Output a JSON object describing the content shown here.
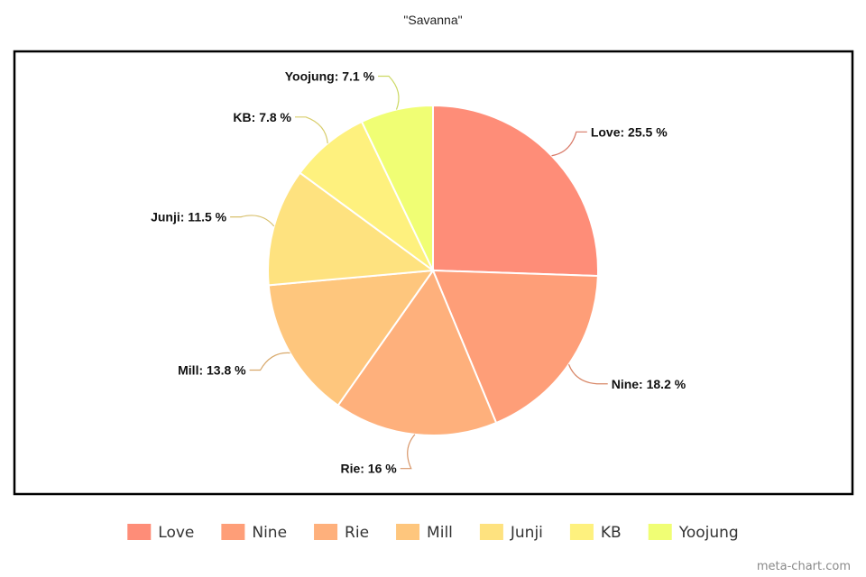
{
  "chart_data": {
    "type": "pie",
    "title": "\"Savanna\"",
    "label_separator": ": ",
    "label_unit": " %",
    "legend_position": "bottom",
    "slices": [
      {
        "name": "Love",
        "value": 25.5,
        "color": "#fe8d78"
      },
      {
        "name": "Nine",
        "value": 18.2,
        "color": "#fe9e78"
      },
      {
        "name": "Rie",
        "value": 16,
        "color": "#feb07c"
      },
      {
        "name": "Mill",
        "value": 13.8,
        "color": "#fec67d"
      },
      {
        "name": "Junji",
        "value": 11.5,
        "color": "#fee27f"
      },
      {
        "name": "KB",
        "value": 7.8,
        "color": "#fef17e"
      },
      {
        "name": "Yoojung",
        "value": 7.1,
        "color": "#f0fe74"
      }
    ]
  },
  "watermark": "meta-chart.com"
}
